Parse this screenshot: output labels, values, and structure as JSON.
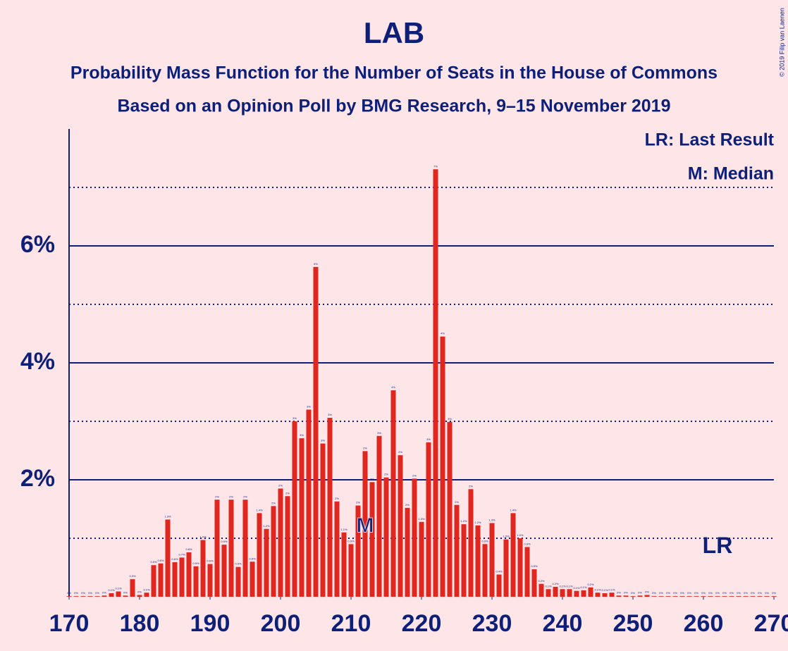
{
  "chart_data": {
    "type": "bar",
    "title": "LAB",
    "subtitle": [
      "Probability Mass Function for the Number of Seats in the House of Commons",
      "Based on an Opinion Poll by BMG Research, 9–15 November 2019"
    ],
    "x": [
      170,
      171,
      172,
      173,
      174,
      175,
      176,
      177,
      178,
      179,
      180,
      181,
      182,
      183,
      184,
      185,
      186,
      187,
      188,
      189,
      190,
      191,
      192,
      193,
      194,
      195,
      196,
      197,
      198,
      199,
      200,
      201,
      202,
      203,
      204,
      205,
      206,
      207,
      208,
      209,
      210,
      211,
      212,
      213,
      214,
      215,
      216,
      217,
      218,
      219,
      220,
      221,
      222,
      223,
      224,
      225,
      226,
      227,
      228,
      229,
      230,
      231,
      232,
      233,
      234,
      235,
      236,
      237,
      238,
      239,
      240,
      241,
      242,
      243,
      244,
      245,
      246,
      247,
      248,
      249,
      250,
      251,
      252,
      253,
      254,
      255,
      256,
      257,
      258,
      259,
      260,
      261,
      262,
      263,
      264,
      265,
      266,
      267,
      268,
      269,
      270
    ],
    "values": [
      0.01,
      0.01,
      0.01,
      0.01,
      0.01,
      0.02,
      0.06,
      0.09,
      0.02,
      0.3,
      0.03,
      0.07,
      0.54,
      0.57,
      1.32,
      0.59,
      0.67,
      0.76,
      0.52,
      0.97,
      0.56,
      1.66,
      0.89,
      1.66,
      0.51,
      1.66,
      0.6,
      1.43,
      1.16,
      1.55,
      1.85,
      1.72,
      3.0,
      2.71,
      3.2,
      5.64,
      2.62,
      3.06,
      1.63,
      1.1,
      0.9,
      1.56,
      2.49,
      1.96,
      2.75,
      2.04,
      3.53,
      2.42,
      1.52,
      2.02,
      1.28,
      2.64,
      7.31,
      4.45,
      2.99,
      1.57,
      1.24,
      1.84,
      1.22,
      0.9,
      1.26,
      0.38,
      0.98,
      1.43,
      1.0,
      0.85,
      0.47,
      0.22,
      0.13,
      0.17,
      0.13,
      0.13,
      0.1,
      0.11,
      0.16,
      0.07,
      0.06,
      0.07,
      0.02,
      0.02,
      0.01,
      0.02,
      0.03,
      0.01,
      0.01,
      0.01,
      0.01,
      0.01,
      0.01,
      0.01,
      0.01,
      0.01,
      0.01,
      0.01,
      0.01,
      0.01,
      0.01,
      0.01,
      0.01,
      0.01,
      0.01
    ],
    "value_labels": [
      "0%",
      "0%",
      "0%",
      "0%",
      "0%",
      "0%",
      "0.1%",
      "0.1%",
      "0%",
      "0.3%",
      "0%",
      "0.1%",
      "0.5%",
      "0.6%",
      "1.3%",
      "0.6%",
      "0.7%",
      "0.8%",
      "0.5%",
      "1.0%",
      "0.6%",
      "2%",
      "0.9%",
      "2%",
      "0.5%",
      "2%",
      "0.6%",
      "1.4%",
      "1.2%",
      "2%",
      "2%",
      "2%",
      "3%",
      "3%",
      "3%",
      "6%",
      "3%",
      "3%",
      "2%",
      "1.1%",
      "0.9%",
      "2%",
      "2%",
      "2%",
      "3%",
      "2%",
      "4%",
      "2%",
      "2%",
      "2%",
      "1.3%",
      "3%",
      "7%",
      "4%",
      "3%",
      "2%",
      "1.2%",
      "2%",
      "1.2%",
      "0.9%",
      "1.3%",
      "0.4%",
      "1.0%",
      "1.4%",
      "1.0%",
      "0.9%",
      "0.5%",
      "0.2%",
      "0.1%",
      "0.2%",
      "0.1%",
      "0.1%",
      "0.1%",
      "0.1%",
      "0.2%",
      "0.1%",
      "0.1%",
      "0.1%",
      "0%",
      "0%",
      "0%",
      "0%",
      "0%",
      "0%",
      "0%",
      "0%",
      "0%",
      "0%",
      "0%",
      "0%",
      "0%",
      "0%",
      "0%",
      "0%",
      "0%",
      "0%",
      "0%",
      "0%",
      "0%",
      "0%",
      "0%"
    ],
    "color": "#e0261f",
    "xlim": [
      170,
      270
    ],
    "xticks": [
      170,
      180,
      190,
      200,
      210,
      220,
      230,
      240,
      250,
      260,
      270
    ],
    "ylim": [
      0,
      8
    ],
    "yticks": [
      {
        "value": 2,
        "label": "2%"
      },
      {
        "value": 4,
        "label": "4%"
      },
      {
        "value": 6,
        "label": "6%"
      }
    ],
    "minor_yticks": [
      1,
      3,
      5,
      7
    ],
    "median": {
      "x": 212,
      "label": "M"
    },
    "last_result": {
      "x": 262,
      "label": "LR"
    },
    "legend": [
      "LR: Last Result",
      "M: Median"
    ],
    "copyright": "© 2019 Filip van Laenen"
  }
}
